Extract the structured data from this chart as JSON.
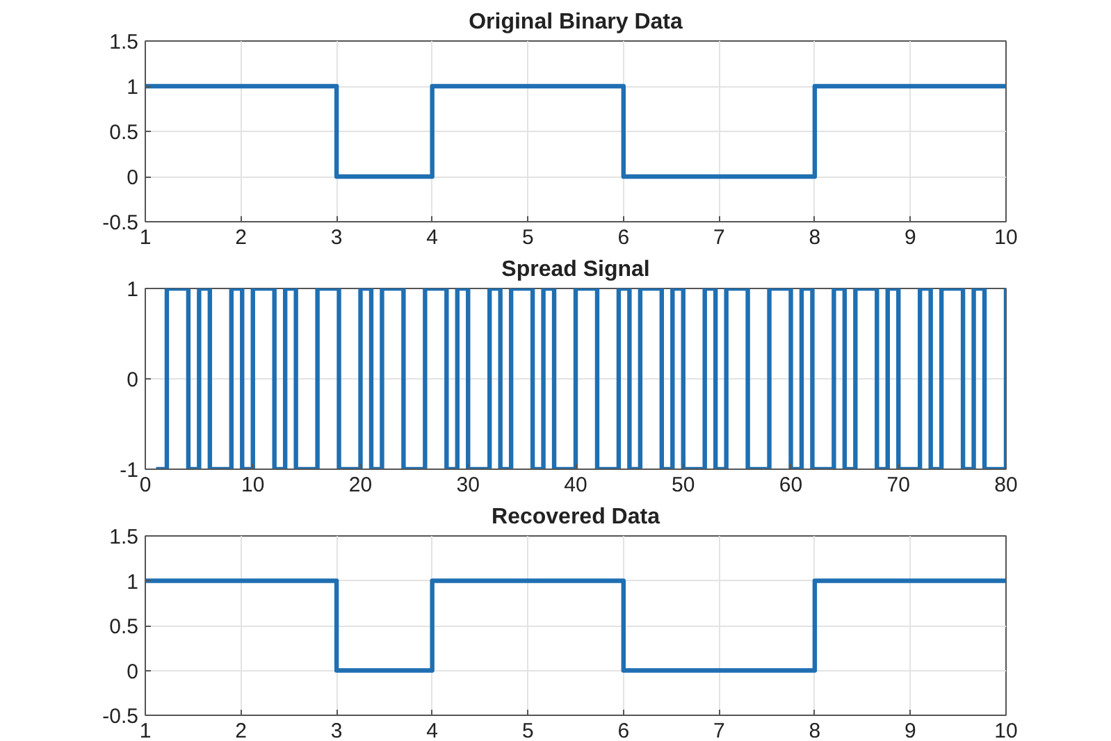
{
  "chart_data": [
    {
      "type": "step",
      "title": "Original Binary Data",
      "x": [
        1,
        2,
        3,
        4,
        5,
        6,
        7,
        8,
        9,
        10
      ],
      "xlim": [
        1,
        10
      ],
      "xticks": [
        1,
        2,
        3,
        4,
        5,
        6,
        7,
        8,
        9,
        10
      ],
      "ylim": [
        -0.5,
        1.5
      ],
      "yticks": [
        -0.5,
        0,
        0.5,
        1,
        1.5
      ],
      "grid": true,
      "color": "#1f6fb2",
      "values": [
        1,
        1,
        0,
        1,
        1,
        0,
        0,
        1,
        1,
        1
      ]
    },
    {
      "type": "step",
      "title": "Spread Signal",
      "x": [
        1,
        2,
        3,
        4,
        5,
        6,
        7,
        8,
        9,
        10,
        11,
        12,
        13,
        14,
        15,
        16,
        17,
        18,
        19,
        20,
        21,
        22,
        23,
        24,
        25,
        26,
        27,
        28,
        29,
        30,
        31,
        32,
        33,
        34,
        35,
        36,
        37,
        38,
        39,
        40,
        41,
        42,
        43,
        44,
        45,
        46,
        47,
        48,
        49,
        50,
        51,
        52,
        53,
        54,
        55,
        56,
        57,
        58,
        59,
        60,
        61,
        62,
        63,
        64,
        65,
        66,
        67,
        68,
        69,
        70,
        71,
        72,
        73,
        74,
        75,
        76,
        77,
        78,
        79,
        80
      ],
      "xlim": [
        0,
        80
      ],
      "xticks": [
        0,
        10,
        20,
        30,
        40,
        50,
        60,
        70,
        80
      ],
      "ylim": [
        -1,
        1
      ],
      "yticks": [
        -1,
        0,
        1
      ],
      "grid": true,
      "color": "#1f6fb2",
      "values": [
        -1,
        1,
        1,
        -1,
        1,
        -1,
        -1,
        1,
        -1,
        1,
        1,
        -1,
        1,
        -1,
        -1,
        1,
        1,
        -1,
        -1,
        1,
        -1,
        1,
        1,
        -1,
        -1,
        1,
        1,
        -1,
        1,
        -1,
        -1,
        1,
        -1,
        1,
        1,
        -1,
        1,
        -1,
        -1,
        1,
        1,
        -1,
        -1,
        1,
        -1,
        1,
        1,
        -1,
        1,
        -1,
        -1,
        1,
        -1,
        1,
        1,
        -1,
        -1,
        1,
        1,
        -1,
        1,
        -1,
        -1,
        1,
        -1,
        1,
        1,
        -1,
        1,
        -1,
        -1,
        1,
        -1,
        1,
        1,
        -1,
        1,
        -1,
        -1,
        1
      ]
    },
    {
      "type": "step",
      "title": "Recovered Data",
      "x": [
        1,
        2,
        3,
        4,
        5,
        6,
        7,
        8,
        9,
        10
      ],
      "xlim": [
        1,
        10
      ],
      "xticks": [
        1,
        2,
        3,
        4,
        5,
        6,
        7,
        8,
        9,
        10
      ],
      "ylim": [
        -0.5,
        1.5
      ],
      "yticks": [
        -0.5,
        0,
        0.5,
        1,
        1.5
      ],
      "grid": true,
      "color": "#1f6fb2",
      "values": [
        1,
        1,
        0,
        1,
        1,
        0,
        0,
        1,
        1,
        1
      ]
    }
  ]
}
